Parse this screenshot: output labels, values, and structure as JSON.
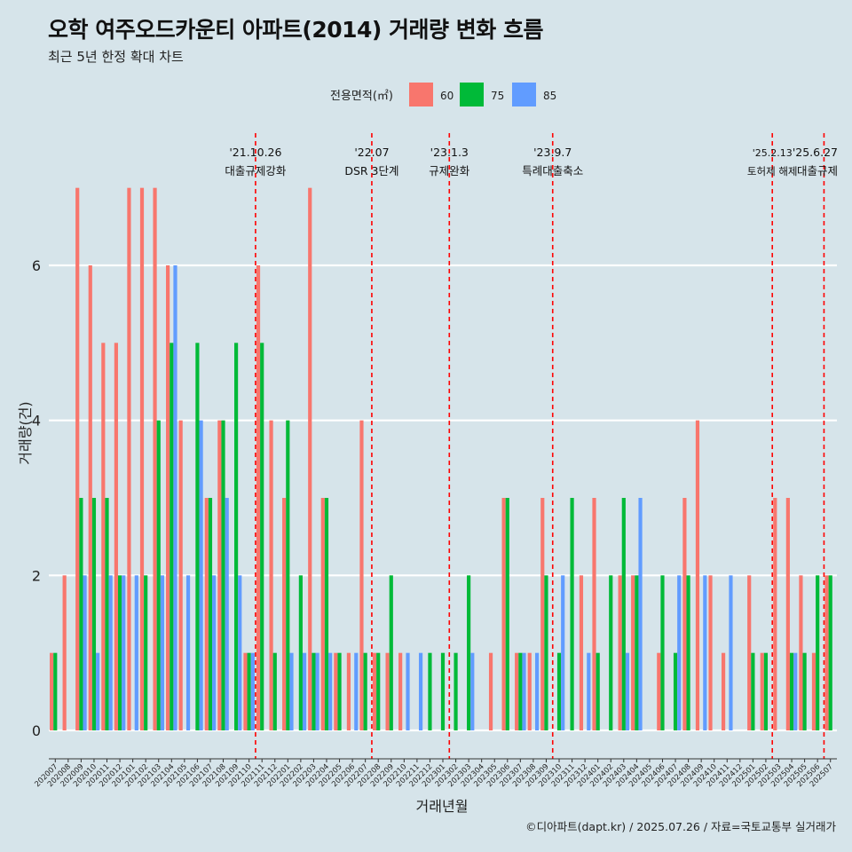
{
  "title": "오학 여주오드카운티 아파트(2014) 거래량 변화 흐름",
  "subtitle": "최근 5년 한정 확대 차트",
  "caption": "©디아파트(dapt.kr) / 2025.07.26 / 자료=국토교통부 실거래가",
  "colors": {
    "background": "#d6e4ea",
    "60": "#f8766d",
    "75": "#00ba38",
    "85": "#619cff",
    "event_line": "#ff0000",
    "grid": "#ffffff"
  },
  "chart_data": {
    "type": "bar",
    "xlabel": "거래년월",
    "ylabel": "거래량(건)",
    "ylim": [
      0,
      7
    ],
    "yticks": [
      0,
      2,
      4,
      6
    ],
    "legend": {
      "title": "전용면적(㎡)",
      "placement": "top",
      "entries": [
        "60",
        "75",
        "85"
      ]
    },
    "grid": "horizontal",
    "categories": [
      "202007",
      "202008",
      "202009",
      "202010",
      "202011",
      "202012",
      "202101",
      "202102",
      "202103",
      "202104",
      "202105",
      "202106",
      "202107",
      "202108",
      "202109",
      "202110",
      "202111",
      "202112",
      "202201",
      "202202",
      "202203",
      "202204",
      "202205",
      "202206",
      "202207",
      "202208",
      "202209",
      "202210",
      "202211",
      "202212",
      "202301",
      "202302",
      "202303",
      "202304",
      "202305",
      "202306",
      "202307",
      "202308",
      "202309",
      "202310",
      "202311",
      "202312",
      "202401",
      "202402",
      "202403",
      "202404",
      "202405",
      "202406",
      "202407",
      "202408",
      "202409",
      "202410",
      "202411",
      "202412",
      "202501",
      "202502",
      "202503",
      "202504",
      "202505",
      "202506",
      "202507"
    ],
    "series": [
      {
        "name": "60",
        "values": [
          1,
          2,
          7,
          6,
          5,
          5,
          7,
          7,
          7,
          6,
          4,
          0,
          3,
          4,
          0,
          1,
          6,
          4,
          3,
          0,
          7,
          3,
          1,
          1,
          4,
          1,
          1,
          1,
          0,
          0,
          0,
          0,
          0,
          0,
          1,
          3,
          1,
          1,
          3,
          0,
          0,
          2,
          3,
          0,
          2,
          2,
          0,
          1,
          0,
          3,
          4,
          2,
          1,
          0,
          2,
          1,
          3,
          3,
          2,
          1,
          2
        ]
      },
      {
        "name": "75",
        "values": [
          1,
          0,
          3,
          3,
          3,
          2,
          0,
          2,
          4,
          5,
          0,
          5,
          3,
          4,
          5,
          1,
          5,
          1,
          4,
          2,
          1,
          3,
          1,
          0,
          1,
          1,
          2,
          0,
          0,
          1,
          1,
          1,
          2,
          0,
          0,
          3,
          1,
          0,
          2,
          1,
          3,
          0,
          1,
          2,
          3,
          2,
          0,
          2,
          1,
          2,
          0,
          0,
          0,
          0,
          1,
          1,
          0,
          1,
          1,
          2,
          2
        ]
      },
      {
        "name": "85",
        "values": [
          0,
          0,
          2,
          1,
          2,
          2,
          2,
          0,
          2,
          6,
          2,
          4,
          2,
          3,
          2,
          1,
          0,
          0,
          1,
          1,
          1,
          1,
          0,
          1,
          0,
          0,
          0,
          1,
          1,
          0,
          0,
          0,
          1,
          0,
          0,
          0,
          1,
          1,
          0,
          2,
          0,
          1,
          0,
          0,
          1,
          3,
          0,
          0,
          2,
          0,
          2,
          0,
          2,
          0,
          0,
          0,
          0,
          1,
          0,
          0,
          0
        ]
      }
    ],
    "events": [
      {
        "after": "202110",
        "date": "'21.10.26",
        "label": "대출규제강화"
      },
      {
        "after": "202207",
        "date": "'22.07",
        "label": "DSR 3단계"
      },
      {
        "after": "202301",
        "date": "'23.1.3",
        "label": "규제완화"
      },
      {
        "after": "202309",
        "date": "'23.9.7",
        "label": "특례대출축소"
      },
      {
        "after": "202502",
        "date": "'25.2.13",
        "label": "토허제 해제"
      },
      {
        "after": "202506",
        "date": "'25.6.27",
        "label": "대출규제"
      }
    ]
  }
}
